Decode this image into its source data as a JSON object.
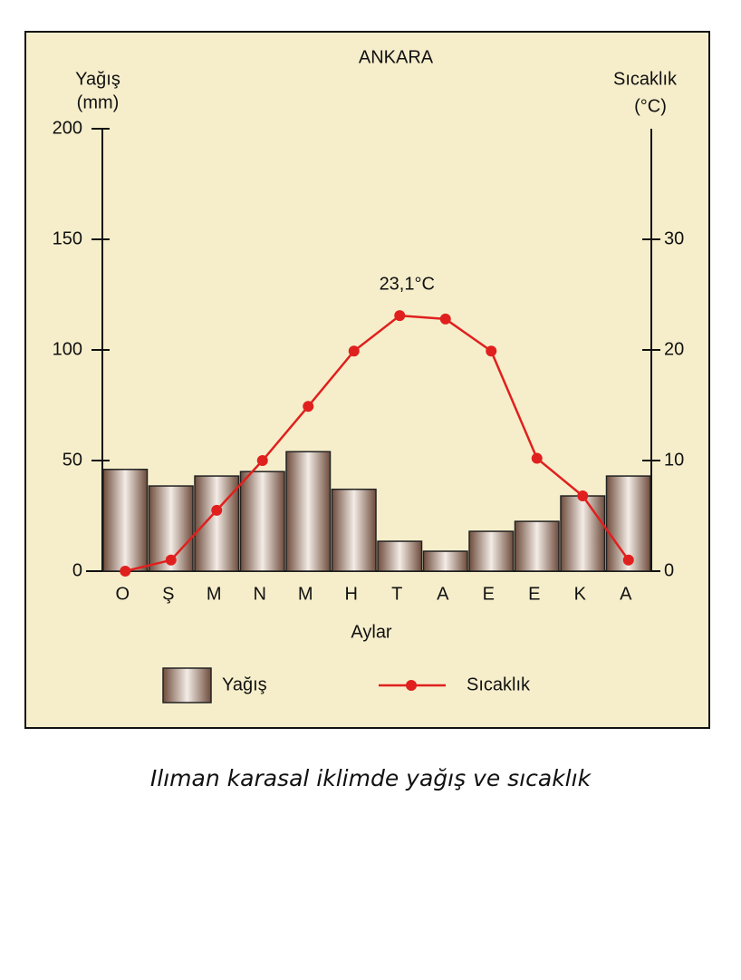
{
  "chart_data": {
    "type": "bar-line",
    "title": "ANKARA",
    "ylabel": [
      "Yağış",
      "(mm)"
    ],
    "y2label": [
      "Sıcaklık",
      "(°C)"
    ],
    "xlabel": "Aylar",
    "categories": [
      "O",
      "Ş",
      "M",
      "N",
      "M",
      "H",
      "T",
      "A",
      "E",
      "E",
      "K",
      "A"
    ],
    "series": [
      {
        "name": "Yağış",
        "type": "bar",
        "color": "#6e4c3c",
        "values": [
          46,
          38.5,
          43,
          45,
          54,
          37,
          13.5,
          9,
          18,
          22.5,
          34,
          43
        ]
      },
      {
        "name": "Sıcaklık",
        "type": "line",
        "axis": "y2",
        "color": "#e0201e",
        "values": [
          0,
          1,
          5.5,
          10,
          14.9,
          19.9,
          23.1,
          22.8,
          19.9,
          10.2,
          6.8,
          1
        ],
        "value_labels": [
          null,
          null,
          null,
          null,
          null,
          null,
          "23,1°C",
          null,
          null,
          null,
          null,
          null
        ]
      }
    ],
    "ylim": [
      0,
      200
    ],
    "yticks": [
      0,
      50,
      100,
      150,
      200
    ],
    "y2lim": [
      0,
      40
    ],
    "y2ticks": [
      0,
      10,
      20,
      30
    ],
    "caption": "Ilıman karasal iklimde yağış ve sıcaklık"
  }
}
